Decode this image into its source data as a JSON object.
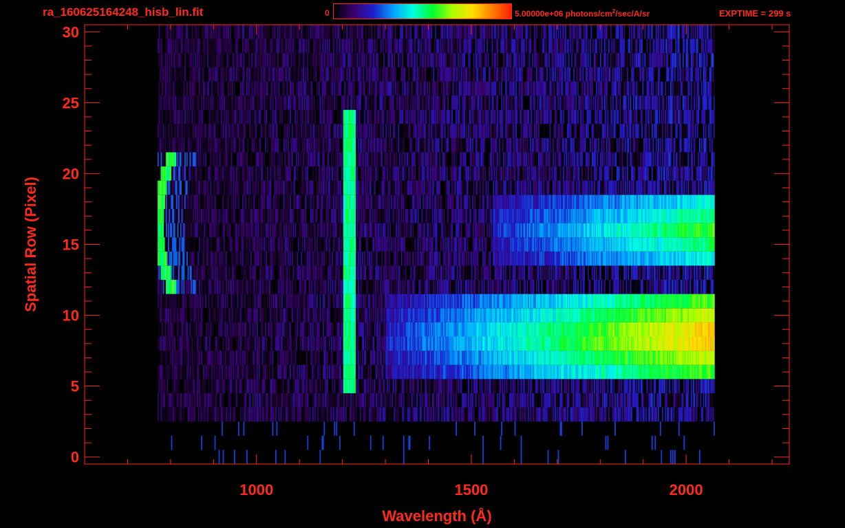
{
  "header": {
    "filename": "ra_160625164248_hisb_lin.fit",
    "colorbar_min": "0",
    "colorbar_max_value": "5.00000e+06 photons/cm",
    "colorbar_max_sup": "2",
    "colorbar_max_unit": "/sec/A/sr",
    "exptime": "EXPTIME = 299 s"
  },
  "colors": {
    "axis": "#ff2a1a",
    "background": "#000000",
    "colormap": [
      "#000000",
      "#3a006a",
      "#1e1ecc",
      "#00a0ff",
      "#00ffe0",
      "#00ff30",
      "#a8ff00",
      "#ffe000",
      "#ff8000",
      "#ff2000"
    ]
  },
  "chart_data": {
    "type": "heatmap",
    "title": "ra_160625164248_hisb_lin.fit",
    "xlabel": "Wavelength (Å)",
    "ylabel": "Spatial Row (Pixel)",
    "xlim": [
      600,
      2240
    ],
    "ylim": [
      -0.5,
      30.5
    ],
    "x_ticks": [
      1000,
      1500,
      2000
    ],
    "x_minor_step": 100,
    "y_ticks": [
      0,
      5,
      10,
      15,
      20,
      25,
      30
    ],
    "y_minor_step": 1,
    "zlim": [
      0,
      5000000
    ],
    "z_units": "photons/cm^2/sec/A/sr",
    "colorscale": "rainbow",
    "rows": [
      0,
      30
    ],
    "wavelength_range": [
      770,
      2065
    ],
    "features": [
      {
        "name": "emission arc",
        "x_center": 790,
        "rows": [
          12,
          21
        ],
        "level": 0.55
      },
      {
        "name": "vertical line",
        "x": 1215,
        "rows": [
          5,
          24
        ],
        "level": 0.5
      },
      {
        "name": "band A",
        "x_start": 1300,
        "x_end": 2060,
        "rows": [
          6,
          11
        ],
        "level_end": 0.85
      },
      {
        "name": "band B",
        "x_start": 1550,
        "x_end": 2060,
        "rows": [
          14,
          18
        ],
        "level_end": 0.6
      }
    ]
  }
}
